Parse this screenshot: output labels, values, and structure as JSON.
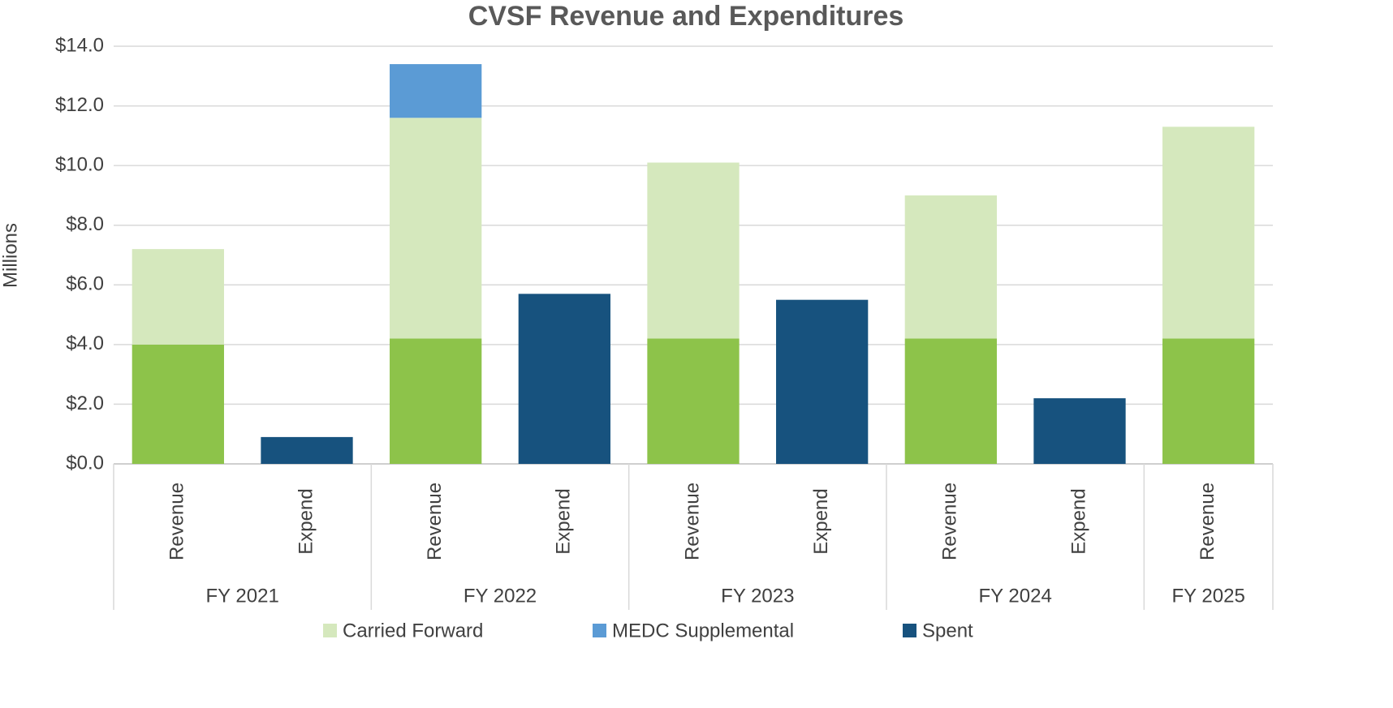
{
  "chart_data": {
    "type": "stacked_bar",
    "title": "CVSF Revenue and Expenditures",
    "y_label": "Millions",
    "groups": [
      {
        "name": "FY 2021",
        "categories": [
          "Revenue",
          "Expend"
        ]
      },
      {
        "name": "FY 2022",
        "categories": [
          "Revenue",
          "Expend"
        ]
      },
      {
        "name": "FY 2023",
        "categories": [
          "Revenue",
          "Expend"
        ]
      },
      {
        "name": "FY 2024",
        "categories": [
          "Revenue",
          "Expend"
        ]
      },
      {
        "name": "FY 2025",
        "categories": [
          "Revenue"
        ]
      }
    ],
    "series": [
      {
        "color": "#8dc34a",
        "values": [
          4.0,
          null,
          4.2,
          null,
          4.2,
          null,
          4.2,
          null,
          4.2
        ]
      },
      {
        "name": "Carried Forward",
        "color": "#d5e8bd",
        "values": [
          3.2,
          null,
          7.4,
          null,
          5.9,
          null,
          4.8,
          null,
          7.1
        ]
      },
      {
        "name": "MEDC Supplemental",
        "color": "#5b9bd5",
        "values": [
          null,
          null,
          1.8,
          null,
          null,
          null,
          null,
          null,
          null
        ]
      },
      {
        "name": "Spent",
        "color": "#17527e",
        "values": [
          null,
          0.9,
          null,
          5.7,
          null,
          5.5,
          null,
          2.2,
          null
        ]
      }
    ],
    "ylim": [
      0,
      14
    ],
    "yticks": [
      {
        "value": 0,
        "label": "$0.0"
      },
      {
        "value": 2,
        "label": "$2.0"
      },
      {
        "value": 4,
        "label": "$4.0"
      },
      {
        "value": 6,
        "label": "$6.0"
      },
      {
        "value": 8,
        "label": "$8.0"
      },
      {
        "value": 10,
        "label": "$10.0"
      },
      {
        "value": 12,
        "label": "$12.0"
      },
      {
        "value": 14,
        "label": "$14.0"
      }
    ],
    "grid": true
  }
}
